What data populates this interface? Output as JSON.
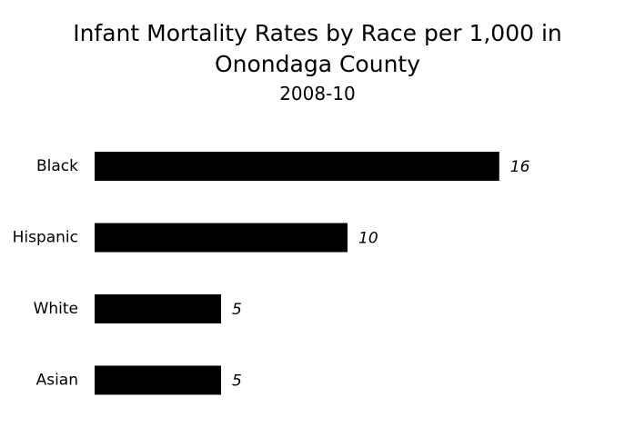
{
  "chart_data": {
    "type": "bar",
    "orientation": "horizontal",
    "title_lines": [
      "Infant Mortality Rates by Race per 1,000 in",
      "Onondaga County"
    ],
    "subtitle": "2008-10",
    "categories": [
      "Black",
      "Hispanic",
      "White",
      "Asian"
    ],
    "values": [
      16,
      10,
      5,
      5
    ],
    "xlim": [
      0,
      16
    ],
    "grid": false,
    "legend": "none",
    "bar_color": "#000000"
  }
}
